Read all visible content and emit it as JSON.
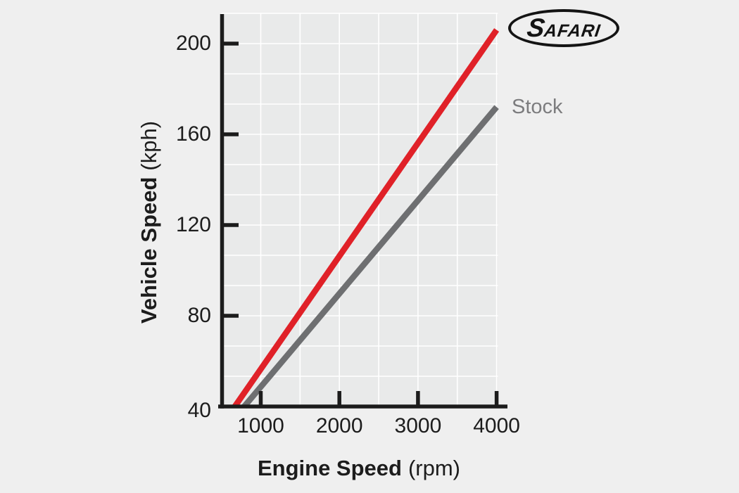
{
  "page": {
    "background_color": "#efefef"
  },
  "logo": {
    "initial": "S",
    "rest": "AFARI",
    "name": "Safari"
  },
  "chart_data": {
    "type": "line",
    "title": "",
    "xlabel": "Engine Speed",
    "xlabel_unit": "(rpm)",
    "ylabel": "Vehicle Speed",
    "ylabel_unit": "(kph)",
    "x_ticks": [
      1000,
      2000,
      3000,
      4000
    ],
    "y_ticks": [
      200,
      160,
      120,
      80,
      40
    ],
    "xlim": [
      500,
      4100
    ],
    "ylim": [
      40,
      214
    ],
    "grid": {
      "show": true,
      "color": "#ffffff",
      "x_minor_step_rpm": 500,
      "y_minor_step_kph": 13.33
    },
    "legend_position": "right-of-line-end",
    "series": [
      {
        "name": "Safari",
        "label": "",
        "color": "#e02128",
        "points_rpm_kph": [
          [
            670,
            40
          ],
          [
            4000,
            206
          ]
        ]
      },
      {
        "name": "Stock",
        "label": "Stock",
        "color": "#6e6f71",
        "points_rpm_kph": [
          [
            790,
            40
          ],
          [
            4000,
            172
          ]
        ]
      }
    ]
  },
  "colors": {
    "background": "#efefef",
    "plot_background": "#e9eaea",
    "grid": "#ffffff",
    "axis": "#1c1c1c",
    "tick_text": "#1c1c1c",
    "stock_label": "#7c7c7e",
    "safari_red": "#e02128",
    "stock_gray": "#6e6f71",
    "logo_black": "#141414"
  }
}
